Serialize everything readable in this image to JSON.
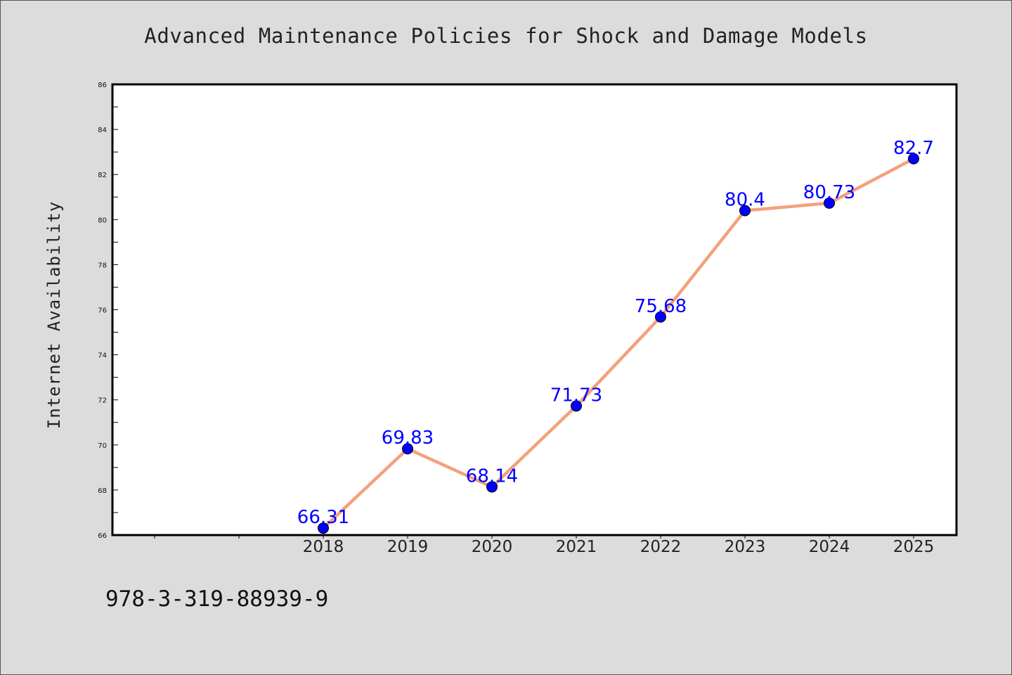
{
  "chart_data": {
    "type": "line",
    "title": "Advanced Maintenance Policies for Shock and Damage Models",
    "xlabel": "",
    "ylabel": "Internet Availability",
    "categories": [
      "2018",
      "2019",
      "2020",
      "2021",
      "2022",
      "2023",
      "2024",
      "2025"
    ],
    "series": [
      {
        "values": [
          66.31,
          69.83,
          68.14,
          71.73,
          75.68,
          80.4,
          80.73,
          82.7
        ],
        "data_labels": [
          "66.31",
          "69.83",
          "68.14",
          "71.73",
          "75.68",
          "80.4",
          "80.73",
          "82.7"
        ],
        "line_color": "#f4a07e",
        "marker_color": "#0000ff"
      }
    ],
    "ylim": [
      66,
      86
    ],
    "yticks": [
      "66",
      "68",
      "70",
      "72",
      "74",
      "76",
      "78",
      "80",
      "82",
      "84",
      "86"
    ],
    "grid": false,
    "legend": "none"
  },
  "footer": {
    "text": "978-3-319-88939-9"
  }
}
